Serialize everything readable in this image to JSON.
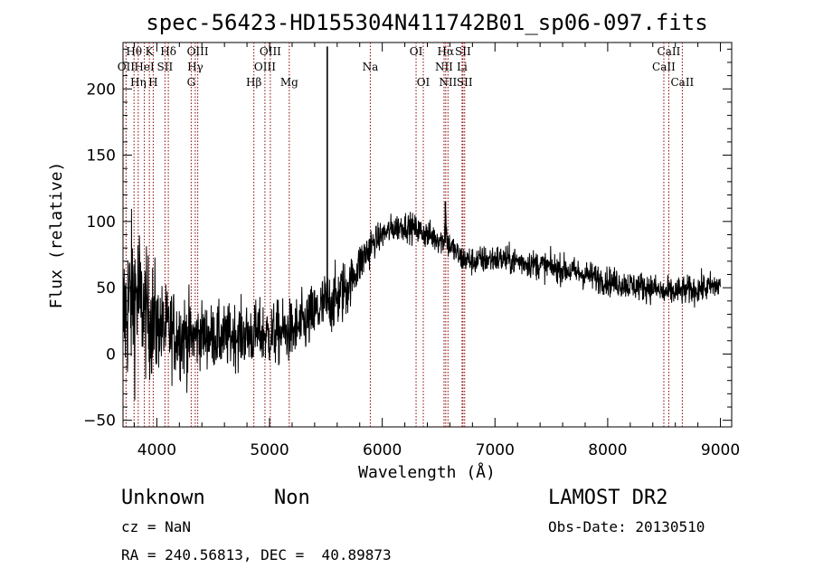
{
  "title": "spec-56423-HD155304N411742B01_sp06-097.fits",
  "info": {
    "class": "Unknown",
    "subclass": "Non",
    "cz": "cz = NaN",
    "coords": "RA = 240.56813, DEC =  40.89873",
    "survey": "LAMOST DR2",
    "obs_date": "Obs-Date: 20130510"
  },
  "chart_data": {
    "type": "line",
    "xlabel": "Wavelength (Å)",
    "ylabel": "Flux (relative)",
    "xlim": [
      3700,
      9100
    ],
    "ylim": [
      -55,
      235
    ],
    "xticks": [
      4000,
      5000,
      6000,
      7000,
      8000,
      9000
    ],
    "xtick_labels": [
      "4000",
      "5000",
      "6000",
      "7000",
      "8000",
      "9000"
    ],
    "yticks": [
      -50,
      0,
      50,
      100,
      150,
      200
    ],
    "ytick_labels": [
      "−50",
      "0",
      "50",
      "100",
      "150",
      "200"
    ],
    "grid": false,
    "line_color": "#000000",
    "marker_color": "#8b0000",
    "spectral_lines": [
      {
        "name": "OII",
        "wavelength": 3727,
        "row": 2
      },
      {
        "name": "Hθ",
        "wavelength": 3798,
        "row": 1
      },
      {
        "name": "Hη",
        "wavelength": 3835,
        "row": 3
      },
      {
        "name": "HeI",
        "wavelength": 3889,
        "row": 2
      },
      {
        "name": "K",
        "wavelength": 3934,
        "row": 1
      },
      {
        "name": "H",
        "wavelength": 3968,
        "row": 3
      },
      {
        "name": "SII",
        "wavelength": 4072,
        "row": 2
      },
      {
        "name": "Hδ",
        "wavelength": 4102,
        "row": 1
      },
      {
        "name": "G",
        "wavelength": 4305,
        "row": 3
      },
      {
        "name": "Hγ",
        "wavelength": 4341,
        "row": 2
      },
      {
        "name": "OIII",
        "wavelength": 4363,
        "row": 1
      },
      {
        "name": "Hβ",
        "wavelength": 4861,
        "row": 3
      },
      {
        "name": "OIII",
        "wavelength": 4959,
        "row": 2
      },
      {
        "name": "OIII",
        "wavelength": 5007,
        "row": 1
      },
      {
        "name": "Mg",
        "wavelength": 5175,
        "row": 3
      },
      {
        "name": "Na",
        "wavelength": 5894,
        "row": 2
      },
      {
        "name": "OI",
        "wavelength": 6300,
        "row": 1
      },
      {
        "name": "OI",
        "wavelength": 6364,
        "row": 3
      },
      {
        "name": "NII",
        "wavelength": 6548,
        "row": 2
      },
      {
        "name": "Hα",
        "wavelength": 6563,
        "row": 1
      },
      {
        "name": "NII",
        "wavelength": 6583,
        "row": 3
      },
      {
        "name": "Li",
        "wavelength": 6708,
        "row": 2
      },
      {
        "name": "SII",
        "wavelength": 6716,
        "row": 1
      },
      {
        "name": "SII",
        "wavelength": 6731,
        "row": 3
      },
      {
        "name": "CaII",
        "wavelength": 8498,
        "row": 2
      },
      {
        "name": "CaII",
        "wavelength": 8542,
        "row": 1
      },
      {
        "name": "CaII",
        "wavelength": 8662,
        "row": 3
      }
    ],
    "continuum": [
      [
        3700,
        25
      ],
      [
        3760,
        40
      ],
      [
        3820,
        45
      ],
      [
        3900,
        30
      ],
      [
        4000,
        22
      ],
      [
        4100,
        18
      ],
      [
        4200,
        15
      ],
      [
        4300,
        12
      ],
      [
        4400,
        15
      ],
      [
        4500,
        13
      ],
      [
        4600,
        12
      ],
      [
        4700,
        15
      ],
      [
        4800,
        14
      ],
      [
        4900,
        16
      ],
      [
        5000,
        14
      ],
      [
        5100,
        16
      ],
      [
        5200,
        17
      ],
      [
        5300,
        22
      ],
      [
        5400,
        30
      ],
      [
        5500,
        38
      ],
      [
        5600,
        42
      ],
      [
        5700,
        52
      ],
      [
        5800,
        68
      ],
      [
        5900,
        82
      ],
      [
        6000,
        90
      ],
      [
        6100,
        95
      ],
      [
        6200,
        97
      ],
      [
        6300,
        94
      ],
      [
        6400,
        90
      ],
      [
        6500,
        87
      ],
      [
        6600,
        82
      ],
      [
        6700,
        72
      ],
      [
        6800,
        70
      ],
      [
        7000,
        72
      ],
      [
        7200,
        70
      ],
      [
        7400,
        67
      ],
      [
        7600,
        64
      ],
      [
        7800,
        60
      ],
      [
        8000,
        55
      ],
      [
        8200,
        52
      ],
      [
        8400,
        50
      ],
      [
        8500,
        46
      ],
      [
        8600,
        47
      ],
      [
        8800,
        49
      ],
      [
        9000,
        52
      ]
    ],
    "features": [
      {
        "x": 5512,
        "y": 232,
        "note": "spike"
      },
      {
        "x": 6560,
        "y": 115,
        "note": "emission"
      }
    ]
  }
}
